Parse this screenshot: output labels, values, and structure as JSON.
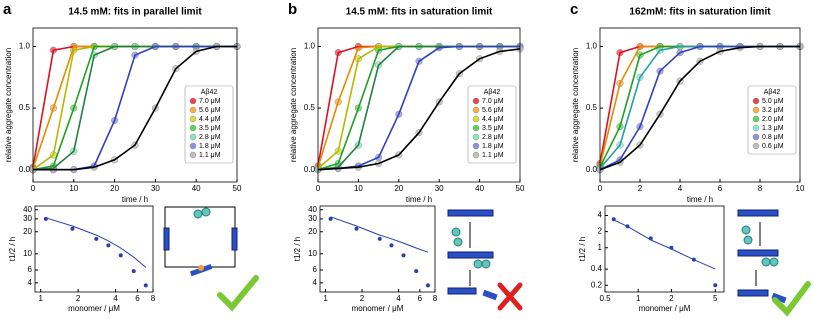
{
  "chart_data": [
    {
      "type": "line",
      "panel_label": "a",
      "title": "14.5 mM: fits in parallel limit",
      "y_label": "relative aggregate concentration",
      "x_label": "time / h",
      "legend_title": "Aβ42",
      "x": [
        0,
        5,
        10,
        15,
        20,
        25,
        30,
        35,
        40,
        45,
        50
      ],
      "xlim": [
        0,
        50
      ],
      "xticks": [
        0,
        10,
        20,
        30,
        40,
        50
      ],
      "ylim": [
        -0.1,
        1.15
      ],
      "yticks": [
        {
          "value": 0,
          "label": "0.0"
        },
        {
          "value": 0.5,
          "label": "0.5"
        },
        {
          "value": 1,
          "label": "1.0"
        }
      ],
      "series": [
        {
          "name": "7.0 μM",
          "color": "#f0404a",
          "fit_color": "#e01020",
          "values": [
            0.02,
            0.97,
            1,
            1,
            1,
            1,
            1,
            1,
            1,
            1,
            1
          ]
        },
        {
          "name": "5.6 μM",
          "color": "#f8b040",
          "fit_color": "#e88a00",
          "values": [
            0.01,
            0.5,
            1,
            1,
            1,
            1,
            1,
            1,
            1,
            1,
            1
          ]
        },
        {
          "name": "4.4 μM",
          "color": "#d8e040",
          "fit_color": "#b8b800",
          "values": [
            0,
            0.12,
            0.97,
            1,
            1,
            1,
            1,
            1,
            1,
            1,
            1
          ]
        },
        {
          "name": "3.5 μM",
          "color": "#58d858",
          "fit_color": "#20a020",
          "values": [
            0,
            0.03,
            0.5,
            1,
            1,
            1,
            1,
            1,
            1,
            1,
            1
          ]
        },
        {
          "name": "2.8 μM",
          "color": "#8ce8b8",
          "fit_color": "#208040",
          "values": [
            0,
            0.01,
            0.15,
            0.93,
            1,
            1,
            1,
            1,
            1,
            1,
            1
          ]
        },
        {
          "name": "1.8 μM",
          "color": "#9090e0",
          "fit_color": "#3040c0",
          "values": [
            0,
            0,
            0,
            0.03,
            0.4,
            0.93,
            1,
            1,
            1,
            1,
            1
          ]
        },
        {
          "name": "1.1 μM",
          "color": "#c0c0c0",
          "fit_color": "#000000",
          "values": [
            0,
            0,
            0,
            0.02,
            0.08,
            0.2,
            0.5,
            0.82,
            0.96,
            1,
            1
          ]
        }
      ]
    },
    {
      "type": "line",
      "panel_label": "b",
      "title": "14.5 mM: fits in saturation limit",
      "y_label": "relative aggregate concentration",
      "x_label": "time / h",
      "legend_title": "Aβ42",
      "x": [
        0,
        5,
        10,
        15,
        20,
        25,
        30,
        35,
        40,
        45,
        50
      ],
      "xlim": [
        0,
        50
      ],
      "xticks": [
        0,
        10,
        20,
        30,
        40,
        50
      ],
      "ylim": [
        -0.1,
        1.15
      ],
      "yticks": [
        {
          "value": 0,
          "label": "0.0"
        },
        {
          "value": 0.5,
          "label": "0.5"
        },
        {
          "value": 1,
          "label": "1.0"
        }
      ],
      "series": [
        {
          "name": "7.0 μM",
          "color": "#f0404a",
          "fit_color": "#e01020",
          "values": [
            0.03,
            0.95,
            1,
            1,
            1,
            1,
            1,
            1,
            1,
            1,
            1
          ]
        },
        {
          "name": "5.6 μM",
          "color": "#f8b040",
          "fit_color": "#e88a00",
          "values": [
            0.02,
            0.55,
            0.99,
            1,
            1,
            1,
            1,
            1,
            1,
            1,
            1
          ]
        },
        {
          "name": "4.4 μM",
          "color": "#d8e040",
          "fit_color": "#b8b800",
          "values": [
            0.01,
            0.15,
            0.9,
            1,
            1,
            1,
            1,
            1,
            1,
            1,
            1
          ]
        },
        {
          "name": "3.5 μM",
          "color": "#58d858",
          "fit_color": "#20a020",
          "values": [
            0,
            0.05,
            0.5,
            0.97,
            1,
            1,
            1,
            1,
            1,
            1,
            1
          ]
        },
        {
          "name": "2.8 μM",
          "color": "#8ce8b8",
          "fit_color": "#208040",
          "values": [
            0,
            0.02,
            0.2,
            0.85,
            1,
            1,
            1,
            1,
            1,
            1,
            1
          ]
        },
        {
          "name": "1.8 μM",
          "color": "#9090e0",
          "fit_color": "#3040c0",
          "values": [
            0,
            0.01,
            0.03,
            0.1,
            0.45,
            0.88,
            0.99,
            1,
            1,
            1,
            1
          ]
        },
        {
          "name": "1.1 μM",
          "color": "#c0c0c0",
          "fit_color": "#000000",
          "values": [
            0,
            0.01,
            0.02,
            0.05,
            0.12,
            0.3,
            0.55,
            0.78,
            0.9,
            0.96,
            0.98
          ]
        }
      ]
    },
    {
      "type": "line",
      "panel_label": "c",
      "title": "162mM: fits in saturation limit",
      "y_label": "relative aggregate concentration",
      "x_label": "time / h",
      "legend_title": "Aβ42",
      "x": [
        0,
        1,
        2,
        3,
        4,
        5,
        6,
        7,
        8,
        9,
        10
      ],
      "xlim": [
        0,
        10
      ],
      "xticks": [
        0,
        2,
        4,
        6,
        8,
        10
      ],
      "ylim": [
        -0.1,
        1.15
      ],
      "yticks": [
        {
          "value": 0,
          "label": "0.0"
        },
        {
          "value": 0.5,
          "label": "0.5"
        },
        {
          "value": 1,
          "label": "1.0"
        }
      ],
      "series": [
        {
          "name": "5.0 μM",
          "color": "#f0404a",
          "fit_color": "#e01020",
          "values": [
            0.05,
            0.95,
            1,
            1,
            1,
            1,
            1,
            1,
            1,
            1,
            1
          ]
        },
        {
          "name": "3.2 μM",
          "color": "#f8b040",
          "fit_color": "#e88a00",
          "values": [
            0.03,
            0.7,
            1,
            1,
            1,
            1,
            1,
            1,
            1,
            1,
            1
          ]
        },
        {
          "name": "2.0 μM",
          "color": "#58d858",
          "fit_color": "#20a020",
          "values": [
            0.02,
            0.35,
            0.93,
            1,
            1,
            1,
            1,
            1,
            1,
            1,
            1
          ]
        },
        {
          "name": "1.3 μM",
          "color": "#8ce8d8",
          "fit_color": "#20a0a0",
          "values": [
            0.01,
            0.2,
            0.75,
            0.97,
            1,
            1,
            1,
            1,
            1,
            1,
            1
          ]
        },
        {
          "name": "0.8 μM",
          "color": "#9090e0",
          "fit_color": "#3040c0",
          "values": [
            0,
            0.08,
            0.35,
            0.8,
            0.95,
            1,
            1,
            1,
            1,
            1,
            1
          ]
        },
        {
          "name": "0.6 μM",
          "color": "#c0c0c0",
          "fit_color": "#000000",
          "values": [
            0,
            0.06,
            0.2,
            0.45,
            0.72,
            0.88,
            0.96,
            0.99,
            1,
            1,
            1
          ]
        }
      ]
    },
    {
      "type": "loglog",
      "y_label": "t1/2 / h",
      "x_label": "monomer / μM",
      "color": "#2a3fb0",
      "x": [
        1.1,
        1.8,
        2.8,
        3.5,
        4.4,
        5.6,
        7.0
      ],
      "values": [
        30,
        22,
        16,
        13,
        9.5,
        5.8,
        3.7
      ],
      "fit_values": [
        31,
        24,
        18,
        15,
        12,
        9,
        6.5
      ],
      "xlim": [
        0.9,
        8
      ],
      "xticks": [
        1,
        2,
        4,
        6,
        8
      ],
      "ylim": [
        3,
        45
      ],
      "yticks": [
        4,
        6,
        10,
        20,
        30,
        40
      ]
    },
    {
      "type": "loglog",
      "y_label": "t1/2 / h",
      "x_label": "monomer / μM",
      "color": "#2a3fb0",
      "x": [
        1.1,
        1.8,
        2.8,
        3.5,
        4.4,
        5.6,
        7.0
      ],
      "values": [
        30,
        22,
        16,
        13,
        9.5,
        5.8,
        3.7
      ],
      "fit_values": [
        32,
        24,
        18,
        16,
        14,
        12,
        10.5
      ],
      "xlim": [
        0.9,
        8
      ],
      "xticks": [
        1,
        2,
        4,
        6,
        8
      ],
      "ylim": [
        3,
        45
      ],
      "yticks": [
        4,
        6,
        10,
        20,
        30,
        40
      ]
    },
    {
      "type": "loglog",
      "y_label": "t1/2 / h",
      "x_label": "monomer / μM",
      "color": "#2a3fb0",
      "x": [
        0.6,
        0.8,
        1.3,
        2.0,
        3.2,
        5.0
      ],
      "values": [
        3.4,
        2.5,
        1.5,
        1.0,
        0.6,
        0.2
      ],
      "fit_values": [
        3.3,
        2.5,
        1.4,
        0.95,
        0.6,
        0.4
      ],
      "xlim": [
        0.5,
        6
      ],
      "xticks": [
        0.5,
        1,
        2,
        5
      ],
      "ylim": [
        0.15,
        6
      ],
      "yticks": [
        0.2,
        0.4,
        1,
        2,
        4
      ]
    }
  ]
}
